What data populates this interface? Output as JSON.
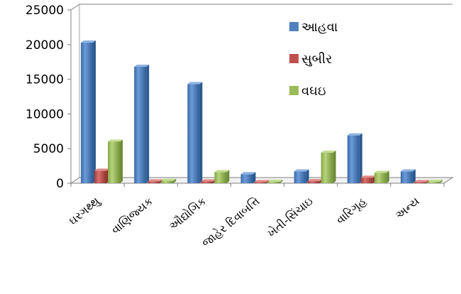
{
  "chart_data": {
    "type": "bar",
    "categories": [
      "ઘરગથ્થુ",
      "વાણિજ્યક",
      "ઔદ્યોગિક",
      "જાહેર દિવાબત્તિ",
      "ખેતી-સિંચાઇ",
      "વારિગૃહ",
      "અન્ય"
    ],
    "series": [
      {
        "name": "આહવા",
        "values": [
          20300,
          16800,
          14300,
          1300,
          1700,
          6900,
          1700
        ]
      },
      {
        "name": "સુબીર",
        "values": [
          1800,
          250,
          250,
          150,
          300,
          800,
          150
        ]
      },
      {
        "name": "વઘઇ",
        "values": [
          6000,
          350,
          1600,
          200,
          4400,
          1500,
          200
        ]
      }
    ],
    "ylim": [
      0,
      25000
    ],
    "yticks": [
      0,
      5000,
      10000,
      15000,
      20000,
      25000
    ],
    "legend_position": "right",
    "colors": [
      "#4F81BD",
      "#C0504D",
      "#9BBB59"
    ],
    "grid": false
  }
}
